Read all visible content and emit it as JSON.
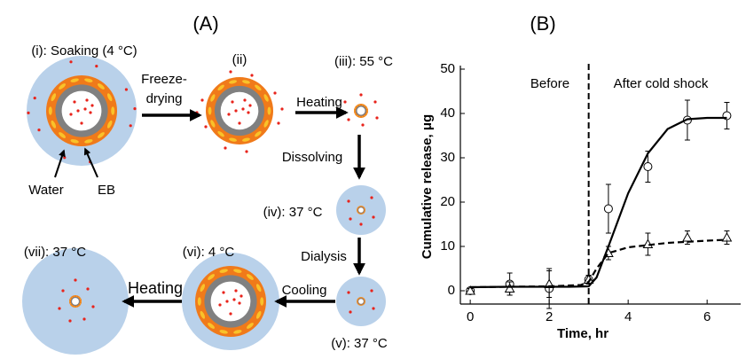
{
  "diagram": {
    "title": "(A)",
    "nodes": [
      {
        "label": "(i): Soaking (4 °C)"
      },
      {
        "label": "(ii)"
      },
      {
        "label": "(iii): 55 °C"
      },
      {
        "label": "(iv): 37 °C"
      },
      {
        "label": "(v): 37 °C"
      },
      {
        "label": "(vi): 4 °C"
      },
      {
        "label": "(vii): 37 °C"
      }
    ],
    "arrows": [
      {
        "label": [
          "Freeze-",
          "drying"
        ]
      },
      {
        "label": [
          "Heating"
        ]
      },
      {
        "label": [
          "Dissolving"
        ]
      },
      {
        "label": [
          "Dialysis"
        ]
      },
      {
        "label": [
          "Cooling"
        ]
      },
      {
        "label": [
          "Heating"
        ]
      }
    ],
    "callouts": [
      "Water",
      "EB"
    ]
  },
  "chart_data": {
    "type": "line",
    "title": "(B)",
    "x_label": "Time, hr",
    "y_label": "Cumulative release, μg",
    "xlim": [
      -0.25,
      6.85
    ],
    "ylim": [
      -3,
      50
    ],
    "xticks": [
      0,
      2,
      4,
      6
    ],
    "yticks": [
      0,
      10,
      20,
      30,
      40,
      50
    ],
    "divider_x": 3,
    "annotations": [
      "Before",
      "After cold shock"
    ],
    "series": [
      {
        "marker": "circle",
        "color": "#000000",
        "x": [
          0,
          1,
          2,
          3,
          3.5,
          4.5,
          5.5,
          6.5
        ],
        "values": [
          0,
          1.5,
          0.5,
          2.5,
          18.5,
          28,
          38.5,
          39.5
        ],
        "errors": [
          0.5,
          2.5,
          4.5,
          1,
          5.5,
          3.5,
          4.5,
          3
        ]
      },
      {
        "marker": "triangle",
        "color": "#000000",
        "x": [
          0,
          1,
          2,
          3,
          3.5,
          4.5,
          5.5,
          6.5
        ],
        "values": [
          0,
          0.5,
          1.5,
          2.5,
          8.5,
          10.5,
          12,
          12
        ],
        "errors": [
          0.5,
          1.5,
          3,
          1,
          1.5,
          2.5,
          1.5,
          1.5
        ]
      },
      {
        "style": "solid",
        "color": "#000000",
        "x": [
          0,
          1,
          2,
          2.5,
          3,
          3.2,
          3.5,
          4,
          4.5,
          5,
          5.5,
          6,
          6.5
        ],
        "values": [
          0.8,
          0.9,
          0.9,
          0.9,
          1,
          3,
          10,
          22,
          31,
          36.5,
          38.7,
          39,
          39
        ]
      },
      {
        "style": "dashed",
        "color": "#000000",
        "x": [
          0,
          1,
          2,
          2.8,
          3,
          3.2,
          3.5,
          4,
          5,
          6,
          6.5
        ],
        "values": [
          0.8,
          0.9,
          1,
          1.3,
          2,
          5,
          8.5,
          9.8,
          10.8,
          11.3,
          11.5
        ]
      }
    ]
  }
}
